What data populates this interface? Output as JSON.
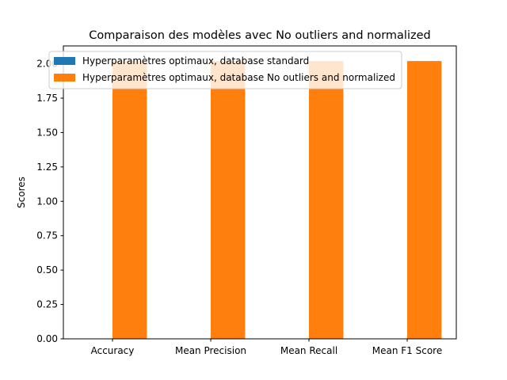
{
  "chart_data": {
    "type": "bar",
    "title": "Comparaison des modèles avec No outliers and normalized",
    "xlabel": "",
    "ylabel": "Scores",
    "categories": [
      "Accuracy",
      "Mean Precision",
      "Mean Recall",
      "Mean F1 Score"
    ],
    "series": [
      {
        "name": "Hyperparamètres optimaux, database standard",
        "color": "#1f77b4",
        "values": [
          0,
          0,
          0,
          0
        ]
      },
      {
        "name": "Hyperparamètres optimaux, database No outliers and normalized",
        "color": "#ff7f0e",
        "values": [
          2.02,
          2.02,
          2.02,
          2.02
        ]
      }
    ],
    "ylim": [
      0,
      2.13
    ],
    "yticks": [
      0.0,
      0.25,
      0.5,
      0.75,
      1.0,
      1.25,
      1.5,
      1.75,
      2.0
    ],
    "ytick_labels": [
      "0.00",
      "0.25",
      "0.50",
      "0.75",
      "1.00",
      "1.25",
      "1.50",
      "1.75",
      "2.00"
    ],
    "grid": false,
    "legend_position": "top-left"
  }
}
